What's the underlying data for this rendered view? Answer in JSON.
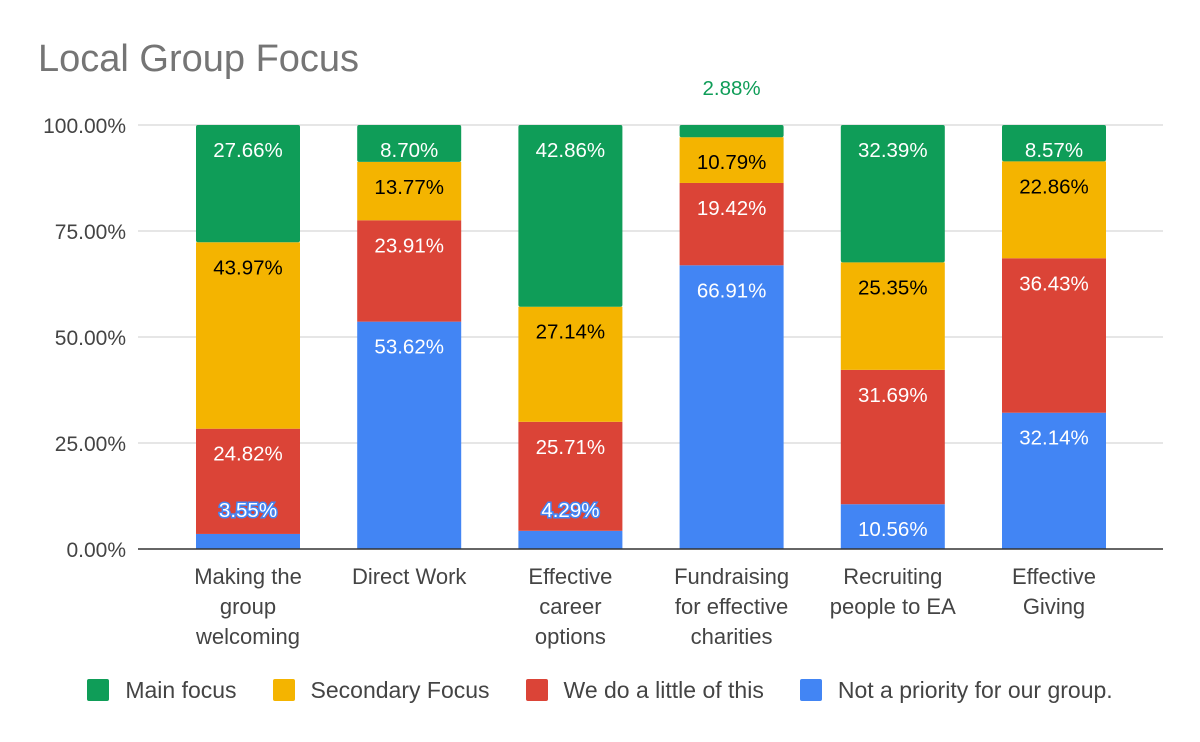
{
  "chart_data": {
    "type": "bar",
    "stacked": true,
    "title": "Local Group Focus",
    "xlabel": "",
    "ylabel": "",
    "ylim": [
      0,
      100
    ],
    "yticks": [
      "0.00%",
      "25.00%",
      "50.00%",
      "75.00%",
      "100.00%"
    ],
    "grid": true,
    "legend_position": "bottom",
    "categories": [
      "Making the group welcoming",
      "Direct Work",
      "Effective career options",
      "Fundraising for effective charities",
      "Recruiting people to EA",
      "Effective Giving"
    ],
    "series": [
      {
        "name": "Not a priority for our group.",
        "color": "#4285f4",
        "values": [
          3.55,
          53.62,
          4.29,
          66.91,
          10.56,
          32.14
        ],
        "labels": [
          "3.55%",
          "53.62%",
          "4.29%",
          "66.91%",
          "10.56%",
          "32.14%"
        ]
      },
      {
        "name": "We do a little of this",
        "color": "#db4437",
        "values": [
          24.82,
          23.91,
          25.71,
          19.42,
          31.69,
          36.43
        ],
        "labels": [
          "24.82%",
          "23.91%",
          "25.71%",
          "19.42%",
          "31.69%",
          "36.43%"
        ]
      },
      {
        "name": "Secondary Focus",
        "color": "#f4b400",
        "values": [
          43.97,
          13.77,
          27.14,
          10.79,
          25.35,
          22.86
        ],
        "labels": [
          "43.97%",
          "13.77%",
          "27.14%",
          "10.79%",
          "25.35%",
          "22.86%"
        ]
      },
      {
        "name": "Main focus",
        "color": "#0f9d58",
        "values": [
          27.66,
          8.7,
          42.86,
          2.88,
          32.39,
          8.57
        ],
        "labels": [
          "27.66%",
          "8.70%",
          "42.86%",
          "2.88%",
          "32.39%",
          "8.57%"
        ]
      }
    ],
    "legend_order": [
      "Main focus",
      "Secondary Focus",
      "We do a little of this",
      "Not a priority for our group."
    ]
  }
}
